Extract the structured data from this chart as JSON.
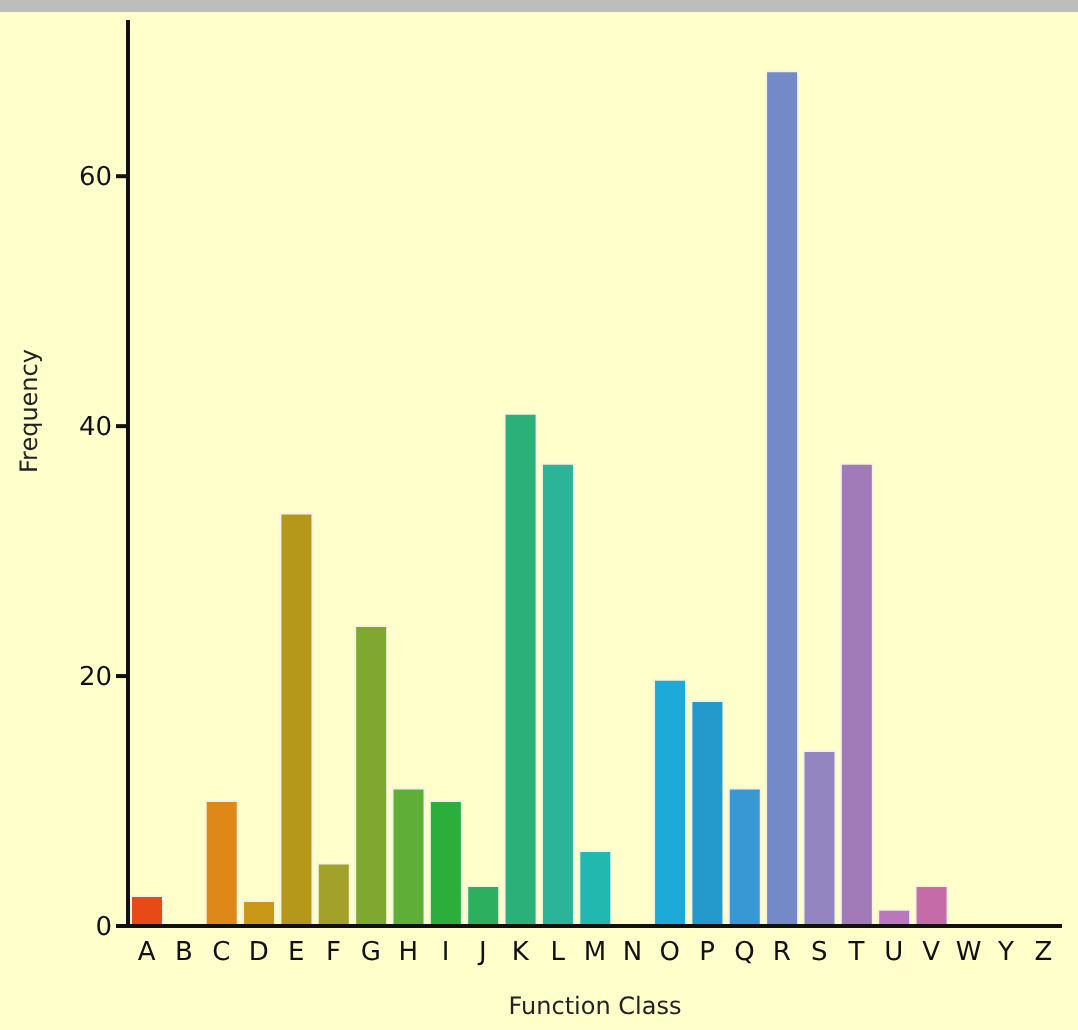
{
  "chart_data": {
    "type": "bar",
    "xlabel": "Function Class",
    "ylabel": "Frequency",
    "categories": [
      "A",
      "B",
      "C",
      "D",
      "E",
      "F",
      "G",
      "H",
      "I",
      "J",
      "K",
      "L",
      "M",
      "N",
      "O",
      "P",
      "Q",
      "R",
      "S",
      "T",
      "U",
      "V",
      "W",
      "Y",
      "Z"
    ],
    "values": [
      2.4,
      0,
      10,
      2,
      33,
      5,
      24,
      11,
      10,
      3.2,
      41,
      37,
      6,
      0,
      19.7,
      18,
      11,
      68.4,
      14,
      37,
      1.3,
      3.2,
      0,
      0,
      0
    ],
    "colors": [
      "#e84a17",
      "#e26a18",
      "#dd8818",
      "#c99818",
      "#b5981a",
      "#a2a22a",
      "#80a830",
      "#5eae38",
      "#2cae3c",
      "#2cb060",
      "#2cb07a",
      "#2cb498",
      "#22b8b0",
      "#20b0c8",
      "#1eaad8",
      "#2499cc",
      "#3898d4",
      "#7489c8",
      "#9386c0",
      "#a07bb8",
      "#bb77bd",
      "#c46ba8",
      "#c86a98",
      "#cc6a88",
      "#d06a78"
    ],
    "ylim": [
      0,
      72.5
    ],
    "yticks": [
      0,
      20,
      40,
      60
    ],
    "grid": false,
    "legend": false
  }
}
